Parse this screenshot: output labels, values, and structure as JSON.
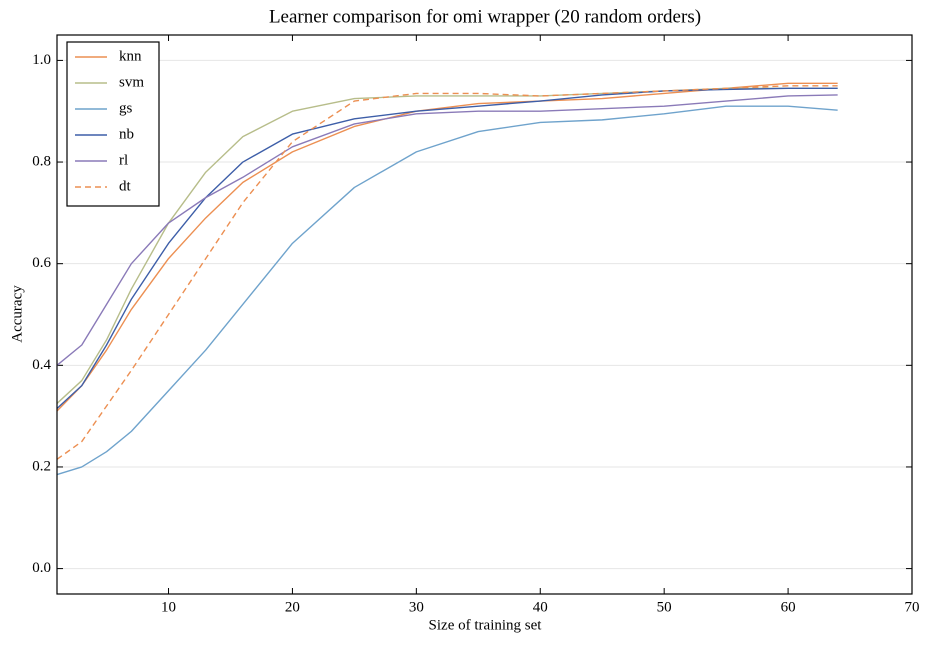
{
  "chart_data": {
    "type": "line",
    "title": "Learner comparison for omi wrapper (20 random orders)",
    "x_label": "Size of training set",
    "y_label": "Accuracy",
    "x": [
      1,
      3,
      5,
      7,
      10,
      13,
      16,
      20,
      25,
      30,
      35,
      40,
      45,
      50,
      55,
      60,
      64
    ],
    "series": [
      {
        "name": "knn",
        "color": "#ec8f52",
        "dashed": false,
        "values": [
          0.31,
          0.36,
          0.43,
          0.51,
          0.61,
          0.69,
          0.76,
          0.82,
          0.87,
          0.9,
          0.915,
          0.92,
          0.925,
          0.935,
          0.945,
          0.955,
          0.955
        ]
      },
      {
        "name": "svm",
        "color": "#b7bd8a",
        "dashed": false,
        "values": [
          0.325,
          0.37,
          0.45,
          0.55,
          0.68,
          0.78,
          0.85,
          0.9,
          0.925,
          0.93,
          0.93,
          0.93,
          0.935,
          0.94,
          0.945,
          0.945,
          0.945
        ]
      },
      {
        "name": "gs",
        "color": "#6fa3cc",
        "dashed": false,
        "values": [
          0.185,
          0.2,
          0.23,
          0.27,
          0.35,
          0.43,
          0.52,
          0.64,
          0.75,
          0.82,
          0.86,
          0.878,
          0.883,
          0.895,
          0.91,
          0.91,
          0.902
        ]
      },
      {
        "name": "nb",
        "color": "#3d5ea8",
        "dashed": false,
        "values": [
          0.315,
          0.36,
          0.44,
          0.53,
          0.64,
          0.73,
          0.8,
          0.855,
          0.885,
          0.9,
          0.91,
          0.92,
          0.932,
          0.94,
          0.943,
          0.945,
          0.945
        ]
      },
      {
        "name": "rl",
        "color": "#8a7ab8",
        "dashed": false,
        "values": [
          0.4,
          0.44,
          0.52,
          0.6,
          0.68,
          0.73,
          0.77,
          0.83,
          0.875,
          0.895,
          0.9,
          0.9,
          0.905,
          0.91,
          0.92,
          0.93,
          0.932
        ]
      },
      {
        "name": "dt",
        "color": "#ec8f52",
        "dashed": true,
        "values": [
          0.215,
          0.25,
          0.32,
          0.39,
          0.5,
          0.61,
          0.72,
          0.84,
          0.92,
          0.935,
          0.935,
          0.93,
          0.935,
          0.94,
          0.945,
          0.95,
          0.95
        ]
      }
    ],
    "xlim": [
      1,
      70
    ],
    "xticks": [
      10,
      20,
      30,
      40,
      50,
      60,
      70
    ],
    "ylim": [
      -0.05,
      1.05
    ],
    "yticks": [
      {
        "value": 0,
        "label": "0.0"
      },
      0.2,
      0.4,
      0.6,
      0.8,
      {
        "value": 1,
        "label": "1.0"
      }
    ],
    "grid": true,
    "legend": "upper-left"
  }
}
